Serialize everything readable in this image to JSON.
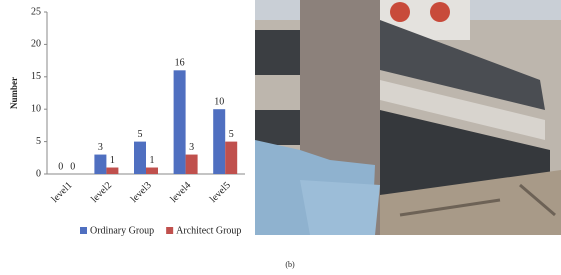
{
  "chart_data": {
    "type": "bar",
    "y_label": "Number",
    "categories": [
      "level1",
      "level2",
      "level3",
      "level4",
      "level5"
    ],
    "series": [
      {
        "name": "Ordinary Group",
        "color": "#4f6fc0",
        "values": [
          0,
          3,
          5,
          16,
          10
        ]
      },
      {
        "name": "Architect Group",
        "color": "#c0504d",
        "values": [
          0,
          1,
          1,
          3,
          5
        ]
      }
    ],
    "ylim": [
      0,
      25
    ],
    "yticks": [
      0,
      5,
      10,
      15,
      20,
      25
    ],
    "grid": false,
    "legend": "bottom"
  },
  "caption": "(b)"
}
